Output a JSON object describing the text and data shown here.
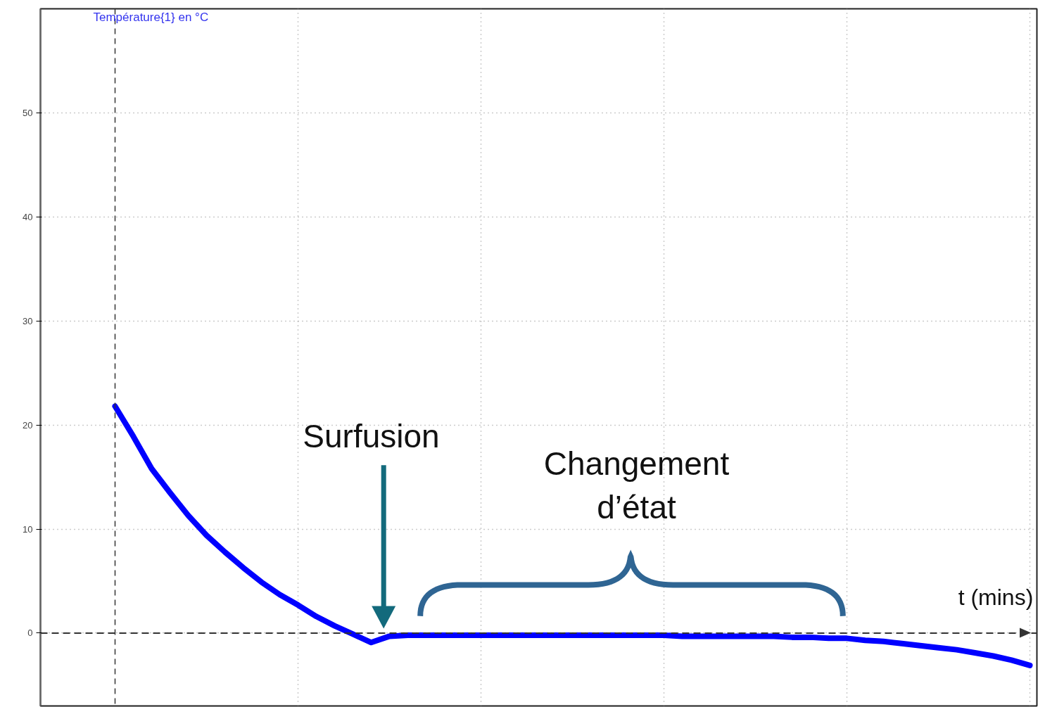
{
  "chart_data": {
    "type": "line",
    "ylabel": "Température{1} en °C",
    "xlabel": "t (mins)",
    "categories": [
      null,
      null,
      null,
      null,
      null,
      null,
      null,
      null,
      null,
      null,
      null,
      null,
      null,
      null,
      null,
      null,
      null,
      null,
      null,
      null,
      null,
      null,
      null,
      null,
      null,
      null,
      null,
      null,
      null,
      null,
      null,
      null,
      null,
      null,
      null,
      null,
      null,
      null,
      null,
      null,
      null,
      null,
      null,
      null,
      null,
      null,
      null,
      null,
      null,
      null,
      null
    ],
    "series": [
      {
        "color": "#0000ff",
        "values": [
          21.8,
          18.9,
          15.8,
          13.5,
          11.3,
          9.4,
          7.8,
          6.3,
          4.9,
          3.7,
          2.7,
          1.6,
          0.7,
          -0.1,
          -0.9,
          -0.3,
          -0.2,
          -0.2,
          -0.2,
          -0.2,
          -0.2,
          -0.2,
          -0.2,
          -0.2,
          -0.2,
          -0.2,
          -0.2,
          -0.2,
          -0.2,
          -0.2,
          -0.2,
          -0.3,
          -0.3,
          -0.3,
          -0.3,
          -0.3,
          -0.3,
          -0.4,
          -0.4,
          -0.5,
          -0.5,
          -0.7,
          -0.8,
          -1.0,
          -1.2,
          -1.4,
          -1.6,
          -1.9,
          -2.2,
          -2.6,
          -3.1
        ]
      }
    ],
    "ylim": [
      -7,
      60
    ],
    "yticks": [
      0,
      10,
      20,
      30,
      40,
      50
    ],
    "grid": true,
    "marker": "none",
    "line_style": "solid",
    "ref_lines": [
      {
        "axis": "y",
        "value": 0,
        "line_style": "dashed",
        "color": "#333333"
      }
    ],
    "annotations": [
      "Surfusion",
      "Changement d’état"
    ]
  }
}
